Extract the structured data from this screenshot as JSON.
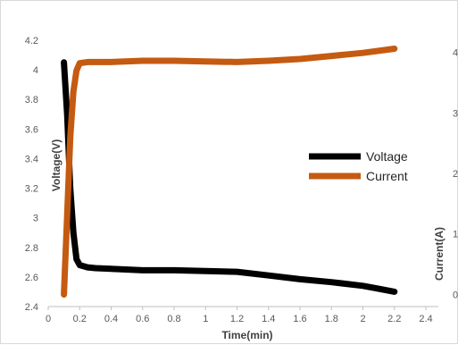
{
  "chart_data": {
    "type": "line",
    "title": "",
    "xlabel": "Time(min)",
    "ylabel": "Voltage(V)",
    "y2label": "Current(A)",
    "xlim": [
      0,
      2.4
    ],
    "ylim": [
      2.4,
      4.2
    ],
    "y2lim": [
      -0.2,
      4.2
    ],
    "x_ticks": [
      "0",
      "0.2",
      "0.4",
      "0.6",
      "0.8",
      "1",
      "1.2",
      "1.4",
      "1.6",
      "1.8",
      "2",
      "2.2",
      "2.4"
    ],
    "y_ticks": [
      "2.4",
      "2.6",
      "2.8",
      "3",
      "3.2",
      "3.4",
      "3.6",
      "3.8",
      "4",
      "4.2"
    ],
    "y2_ticks": [
      "0",
      "1",
      "2",
      "3",
      "4"
    ],
    "grid": false,
    "legend_position": "center-right",
    "series": [
      {
        "name": "Voltage",
        "axis": "left",
        "color": "#000000",
        "x": [
          0.1,
          0.12,
          0.14,
          0.16,
          0.18,
          0.2,
          0.25,
          0.3,
          0.4,
          0.6,
          0.8,
          1.0,
          1.2,
          1.4,
          1.6,
          1.8,
          2.0,
          2.1,
          2.2
        ],
        "y": [
          4.05,
          3.7,
          3.2,
          2.9,
          2.72,
          2.68,
          2.665,
          2.66,
          2.655,
          2.645,
          2.645,
          2.64,
          2.635,
          2.61,
          2.585,
          2.565,
          2.54,
          2.52,
          2.5
        ]
      },
      {
        "name": "Current",
        "axis": "right",
        "color": "#C55A11",
        "x": [
          0.1,
          0.12,
          0.14,
          0.16,
          0.18,
          0.2,
          0.25,
          0.3,
          0.4,
          0.6,
          0.8,
          1.0,
          1.2,
          1.4,
          1.6,
          1.8,
          2.0,
          2.2
        ],
        "y": [
          0.0,
          1.3,
          2.6,
          3.35,
          3.7,
          3.82,
          3.84,
          3.84,
          3.84,
          3.86,
          3.86,
          3.85,
          3.84,
          3.86,
          3.89,
          3.94,
          3.99,
          4.06
        ]
      }
    ]
  }
}
